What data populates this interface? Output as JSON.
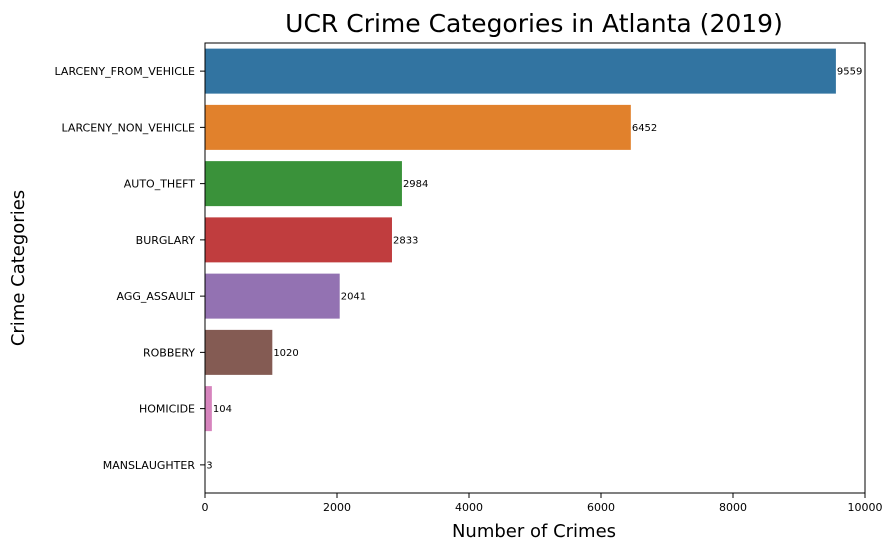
{
  "chart_data": {
    "type": "bar",
    "orientation": "horizontal",
    "title": "UCR Crime Categories in Atlanta (2019)",
    "xlabel": "Number of Crimes",
    "ylabel": "Crime Categories",
    "categories": [
      "LARCENY_FROM_VEHICLE",
      "LARCENY_NON_VEHICLE",
      "AUTO_THEFT",
      "BURGLARY",
      "AGG_ASSAULT",
      "ROBBERY",
      "HOMICIDE",
      "MANSLAUGHTER"
    ],
    "values": [
      9559,
      6452,
      2984,
      2833,
      2041,
      1020,
      104,
      3
    ],
    "data_labels": [
      "9559",
      "6452",
      "2984",
      "2833",
      "2041",
      "1020",
      "104",
      "3"
    ],
    "colors": [
      "#3274a1",
      "#e1812c",
      "#3a923a",
      "#c03d3e",
      "#9372b2",
      "#845b53",
      "#d684bd",
      "#7f7f7f"
    ],
    "xlim": [
      0,
      10000
    ],
    "xticks": [
      0,
      2000,
      4000,
      6000,
      8000,
      10000
    ],
    "xtick_labels": [
      "0",
      "2000",
      "4000",
      "6000",
      "8000",
      "10000"
    ],
    "grid": false,
    "legend": "none"
  }
}
